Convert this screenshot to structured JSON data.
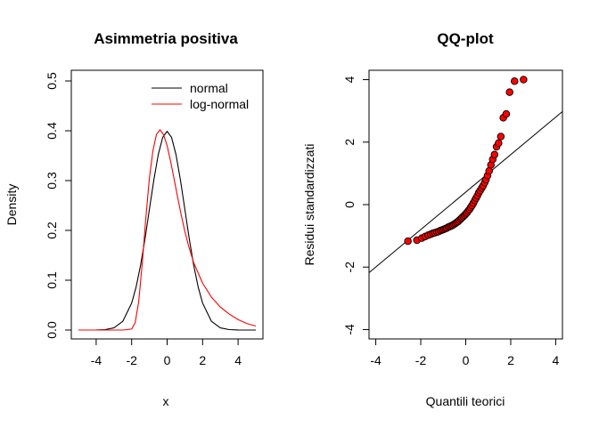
{
  "chart_data": [
    {
      "type": "line",
      "title": "Asimmetria positiva",
      "xlabel": "x",
      "ylabel": "Density",
      "xlim": [
        -5,
        5
      ],
      "ylim": [
        0,
        0.5
      ],
      "xticks": [
        -4,
        -2,
        0,
        2,
        4
      ],
      "yticks": [
        0.0,
        0.1,
        0.2,
        0.3,
        0.4,
        0.5
      ],
      "xtick_labels": [
        "-4",
        "-2",
        "0",
        "2",
        "4"
      ],
      "ytick_labels": [
        "0.0",
        "0.1",
        "0.2",
        "0.3",
        "0.4",
        "0.5"
      ],
      "grid": false,
      "legend": "top-right",
      "series": [
        {
          "name": "normal",
          "color": "#000000",
          "x": [
            -5.0,
            -4.5,
            -4.0,
            -3.5,
            -3.0,
            -2.5,
            -2.0,
            -1.75,
            -1.5,
            -1.25,
            -1.0,
            -0.75,
            -0.5,
            -0.25,
            0.0,
            0.25,
            0.5,
            0.75,
            1.0,
            1.25,
            1.5,
            1.75,
            2.0,
            2.5,
            3.0,
            3.5,
            4.0,
            4.5,
            5.0
          ],
          "y": [
            0.0,
            0.0,
            0.0001,
            0.0009,
            0.0044,
            0.0175,
            0.054,
            0.0863,
            0.1295,
            0.1826,
            0.242,
            0.3011,
            0.3521,
            0.3867,
            0.3989,
            0.3867,
            0.3521,
            0.3011,
            0.242,
            0.1826,
            0.1295,
            0.0863,
            0.054,
            0.0175,
            0.0044,
            0.0009,
            0.0001,
            0.0,
            0.0
          ]
        },
        {
          "name": "log-normal",
          "color": "#ff0000",
          "x": [
            -5.0,
            -2.5,
            -2.0,
            -1.8,
            -1.6,
            -1.4,
            -1.2,
            -1.0,
            -0.8,
            -0.6,
            -0.4,
            -0.2,
            0.0,
            0.2,
            0.4,
            0.6,
            0.8,
            1.0,
            1.2,
            1.5,
            2.0,
            2.5,
            3.0,
            3.5,
            4.0,
            4.5,
            5.0
          ],
          "y": [
            0.0,
            0.0,
            0.002,
            0.015,
            0.058,
            0.135,
            0.225,
            0.305,
            0.36,
            0.393,
            0.402,
            0.392,
            0.37,
            0.338,
            0.302,
            0.265,
            0.23,
            0.198,
            0.17,
            0.135,
            0.094,
            0.066,
            0.046,
            0.032,
            0.021,
            0.013,
            0.008
          ]
        }
      ]
    },
    {
      "type": "scatter",
      "title": "QQ-plot",
      "xlabel": "Quantili teorici",
      "ylabel": "Residui  standardizzati",
      "xlim": [
        -4.3,
        4.3
      ],
      "ylim": [
        -4.3,
        4.3
      ],
      "xticks": [
        -4,
        -2,
        0,
        2,
        4
      ],
      "yticks": [
        -4,
        -2,
        0,
        2,
        4
      ],
      "xtick_labels": [
        "-4",
        "-2",
        "0",
        "2",
        "4"
      ],
      "ytick_labels": [
        "-4",
        "-2",
        "0",
        "2",
        "4"
      ],
      "grid": false,
      "point_color": "#ff0000",
      "reference_line": {
        "intercept": 0.4,
        "slope": 0.6
      },
      "points": {
        "x": [
          -2.57,
          -2.17,
          -1.95,
          -1.8,
          -1.67,
          -1.56,
          -1.46,
          -1.37,
          -1.28,
          -1.2,
          -1.12,
          -1.04,
          -0.97,
          -0.9,
          -0.84,
          -0.77,
          -0.71,
          -0.64,
          -0.58,
          -0.52,
          -0.46,
          -0.4,
          -0.34,
          -0.28,
          -0.22,
          -0.17,
          -0.11,
          -0.05,
          0.0,
          0.05,
          0.11,
          0.17,
          0.22,
          0.28,
          0.34,
          0.4,
          0.46,
          0.52,
          0.58,
          0.64,
          0.71,
          0.77,
          0.84,
          0.9,
          0.97,
          1.04,
          1.12,
          1.2,
          1.28,
          1.37,
          1.46,
          1.56,
          1.67,
          1.8,
          1.95,
          2.17,
          2.57
        ],
        "y": [
          -1.17,
          -1.14,
          -1.07,
          -1.02,
          -0.98,
          -0.95,
          -0.92,
          -0.9,
          -0.88,
          -0.86,
          -0.83,
          -0.81,
          -0.79,
          -0.77,
          -0.75,
          -0.72,
          -0.7,
          -0.68,
          -0.66,
          -0.63,
          -0.6,
          -0.57,
          -0.54,
          -0.5,
          -0.46,
          -0.42,
          -0.38,
          -0.34,
          -0.3,
          -0.26,
          -0.2,
          -0.15,
          -0.09,
          -0.03,
          0.05,
          0.13,
          0.21,
          0.29,
          0.38,
          0.45,
          0.53,
          0.6,
          0.7,
          0.8,
          0.93,
          1.08,
          1.27,
          1.45,
          1.6,
          1.85,
          1.97,
          2.18,
          2.78,
          2.9,
          3.6,
          3.95,
          4.0
        ]
      }
    }
  ]
}
